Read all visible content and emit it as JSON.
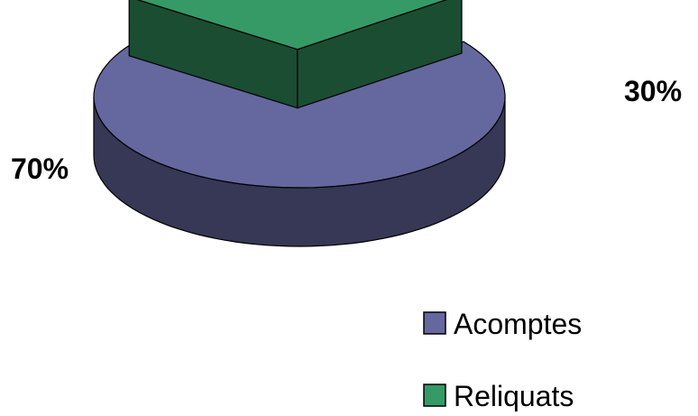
{
  "chart_data": {
    "type": "pie",
    "title": "",
    "categories": [
      "Acomptes",
      "Reliquats"
    ],
    "values": [
      70,
      30
    ],
    "labels": [
      "70%",
      "30%"
    ],
    "colors": {
      "Acomptes": "#65679f",
      "Reliquats": "#359a66"
    },
    "side_colors": {
      "Acomptes": "#363855",
      "Reliquats": "#1b4d33"
    },
    "style": "3d-exploded",
    "legend_position": "bottom-right"
  }
}
